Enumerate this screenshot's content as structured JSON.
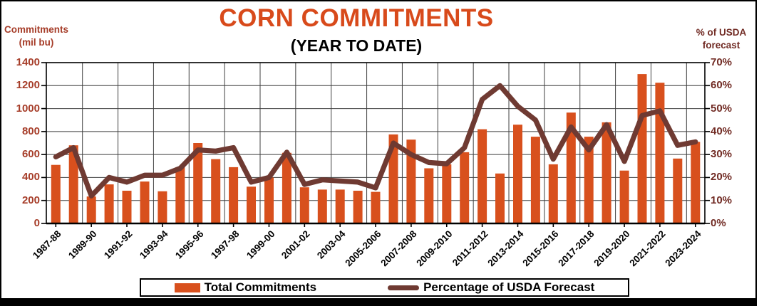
{
  "title": "CORN COMMITMENTS",
  "subtitle": "(YEAR TO DATE)",
  "left_axis": {
    "title_line1": "Commitments",
    "title_line2": "(mil bu)",
    "tick_labels": [
      "0",
      "200",
      "400",
      "600",
      "800",
      "1000",
      "1200",
      "1400"
    ]
  },
  "right_axis": {
    "title_line1": "% of USDA",
    "title_line2": "forecast",
    "tick_labels": [
      "0%",
      "10%",
      "20%",
      "30%",
      "40%",
      "50%",
      "60%",
      "70%"
    ]
  },
  "legend": {
    "bars_label": "Total Commitments",
    "line_label": "Percentage of USDA Forecast"
  },
  "colors": {
    "bar": "#d8501d",
    "line": "#6f3a32",
    "title": "#d84a1b",
    "left_axis_text": "#a63d29",
    "right_axis_text": "#712b24",
    "grid": "#3f3f3f",
    "plot_border": "#000000"
  },
  "chart_data": {
    "type": "bar+line",
    "title": "CORN COMMITMENTS (YEAR TO DATE)",
    "categories": [
      "1987-88",
      "1988-89",
      "1989-90",
      "1990-91",
      "1991-92",
      "1992-93",
      "1993-94",
      "1994-95",
      "1995-96",
      "1996-97",
      "1997-98",
      "1998-99",
      "1999-00",
      "2000-01",
      "2001-02",
      "2002-03",
      "2003-04",
      "2004-05",
      "2005-2006",
      "2006-2007",
      "2007-2008",
      "2008-2009",
      "2009-2010",
      "2010-2011",
      "2011-2012",
      "2012-2013",
      "2013-2014",
      "2014-2015",
      "2015-2016",
      "2016-2017",
      "2017-2018",
      "2018-2019",
      "2019-2020",
      "2020-2021",
      "2021-2022",
      "2022-2023",
      "2023-2024"
    ],
    "x_tick_labels": [
      "1987-88",
      "1989-90",
      "1991-92",
      "1993-94",
      "1995-96",
      "1997-98",
      "1999-00",
      "2001-02",
      "2003-04",
      "2005-2006",
      "2007-2008",
      "2009-2010",
      "2011-2012",
      "2013-2014",
      "2015-2016",
      "2017-2018",
      "2019-2020",
      "2021-2022",
      "2023-2024"
    ],
    "series": [
      {
        "name": "Total Commitments",
        "type": "bar",
        "axis": "left",
        "units": "mil bu",
        "values": [
          510,
          680,
          235,
          340,
          285,
          365,
          280,
          490,
          700,
          560,
          490,
          320,
          400,
          615,
          315,
          295,
          295,
          285,
          275,
          775,
          730,
          480,
          515,
          620,
          820,
          435,
          860,
          755,
          515,
          965,
          755,
          880,
          460,
          1300,
          1225,
          565,
          710
        ]
      },
      {
        "name": "Percentage of USDA Forecast",
        "type": "line",
        "axis": "right",
        "units": "%",
        "values": [
          29,
          33,
          12,
          20,
          18,
          21,
          21,
          24,
          32,
          31.5,
          33,
          18,
          20,
          31,
          17,
          19,
          18.5,
          18,
          15.5,
          35,
          30,
          26.5,
          26,
          33,
          54,
          60,
          51,
          45,
          28,
          42,
          32,
          43,
          27,
          47,
          49,
          34,
          35.5
        ]
      }
    ],
    "left_ylim": [
      0,
      1400
    ],
    "right_ylim": [
      0,
      70
    ],
    "grid": true,
    "legend_position": "bottom"
  }
}
